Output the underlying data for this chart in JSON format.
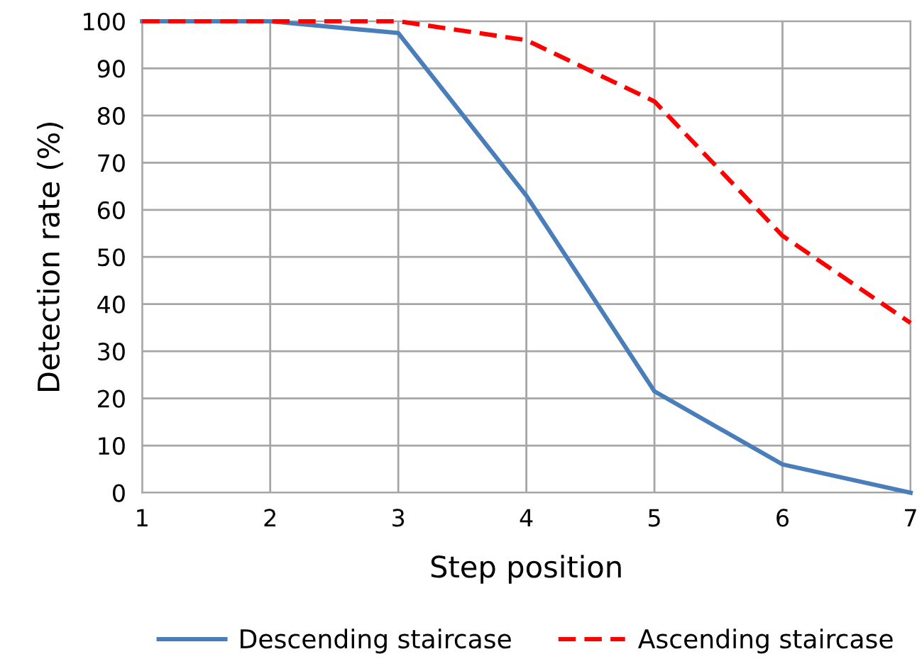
{
  "chart_data": {
    "type": "line",
    "xlabel": "Step position",
    "ylabel": "Detection rate (%)",
    "x": [
      1,
      2,
      3,
      4,
      5,
      6,
      7
    ],
    "xlim": [
      1,
      7
    ],
    "xticks": [
      1,
      2,
      3,
      4,
      5,
      6,
      7
    ],
    "ylim": [
      0,
      100
    ],
    "yticks": [
      0,
      10,
      20,
      30,
      40,
      50,
      60,
      70,
      80,
      90,
      100
    ],
    "grid": true,
    "legend": "bottom",
    "marker": "none",
    "series": [
      {
        "name": "Descending staircase",
        "color": "#4a7ebb",
        "line_style": "solid",
        "values": [
          100,
          100,
          97.5,
          63,
          21.5,
          6,
          0
        ]
      },
      {
        "name": "Ascending staircase",
        "color": "#ff0000",
        "line_style": "dashed",
        "values": [
          100,
          100,
          100,
          96,
          83,
          54.5,
          36
        ]
      }
    ]
  }
}
